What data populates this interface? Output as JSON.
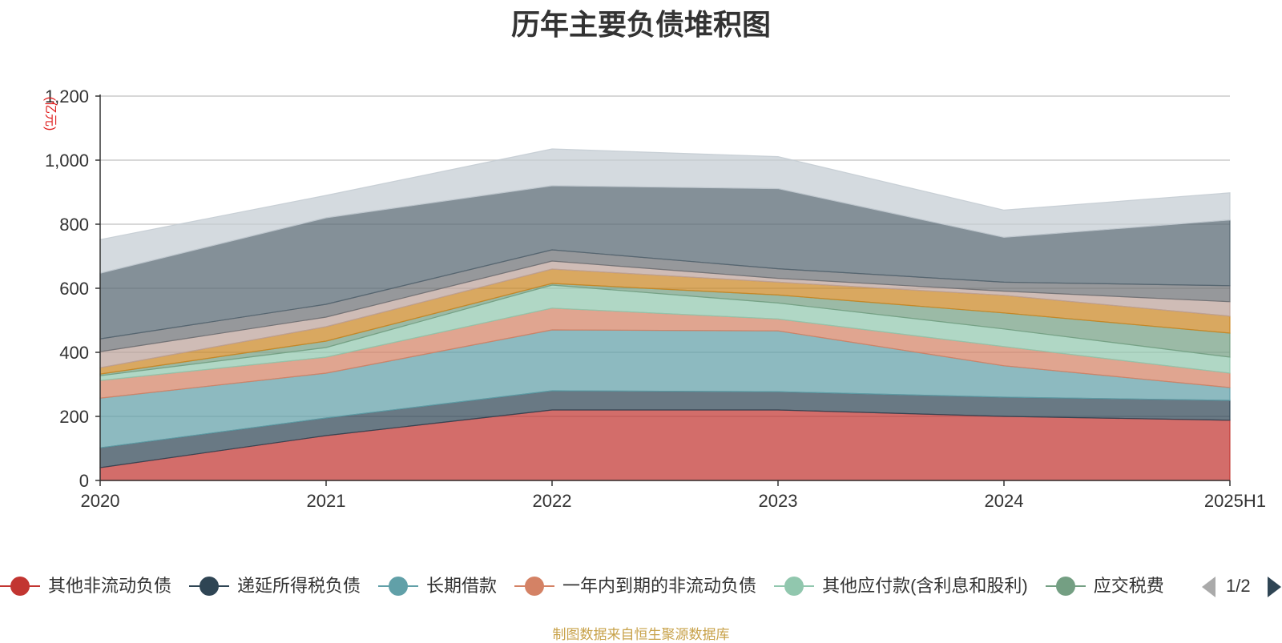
{
  "chart_data": {
    "type": "area",
    "stacked": true,
    "title": "历年主要负债堆积图",
    "ylabel": "(亿元)",
    "xlabel": "",
    "categories": [
      "2020",
      "2021",
      "2022",
      "2023",
      "2024",
      "2025H1"
    ],
    "ylim": [
      0,
      1200
    ],
    "yticks": [
      0,
      200,
      400,
      600,
      800,
      1000,
      1200
    ],
    "ytick_labels": [
      "0",
      "200",
      "400",
      "600",
      "800",
      "1,000",
      "1,200"
    ],
    "grid": true,
    "legend_position": "bottom",
    "series": [
      {
        "name": "其他非流动负债",
        "color": "#c23531",
        "values": [
          40,
          140,
          220,
          220,
          200,
          188
        ]
      },
      {
        "name": "递延所得税负债",
        "color": "#2f4554",
        "values": [
          62,
          55,
          60,
          57,
          60,
          62
        ]
      },
      {
        "name": "长期借款",
        "color": "#61a0a8",
        "values": [
          155,
          140,
          190,
          190,
          98,
          40
        ]
      },
      {
        "name": "一年内到期的非流动负债",
        "color": "#d48265",
        "values": [
          55,
          50,
          68,
          37,
          60,
          45
        ]
      },
      {
        "name": "其他应付款(含利息和股利)",
        "color": "#91c7ae",
        "values": [
          15,
          30,
          72,
          50,
          55,
          50
        ]
      },
      {
        "name": "应交税费",
        "color": "#749f83",
        "values": [
          5,
          20,
          5,
          25,
          50,
          75
        ]
      },
      {
        "name": "",
        "color": "#ca8622",
        "values": [
          20,
          45,
          45,
          40,
          55,
          53
        ]
      },
      {
        "name": "",
        "color": "#bda29a",
        "values": [
          50,
          30,
          25,
          12,
          13,
          45
        ]
      },
      {
        "name": "",
        "color": "#6e7074",
        "values": [
          40,
          40,
          35,
          30,
          28,
          50
        ]
      },
      {
        "name": "",
        "color": "#546570",
        "values": [
          205,
          270,
          200,
          250,
          140,
          205
        ]
      },
      {
        "name": "",
        "color": "#c4ccd3",
        "values": [
          105,
          70,
          115,
          100,
          85,
          85
        ]
      }
    ]
  },
  "legend": {
    "page_text": "1/2",
    "items": [
      "其他非流动负债",
      "递延所得税负债",
      "长期借款",
      "一年内到期的非流动负债",
      "其他应付款(含利息和股利)",
      "应交税费"
    ]
  },
  "source_text": "制图数据来自恒生聚源数据库"
}
